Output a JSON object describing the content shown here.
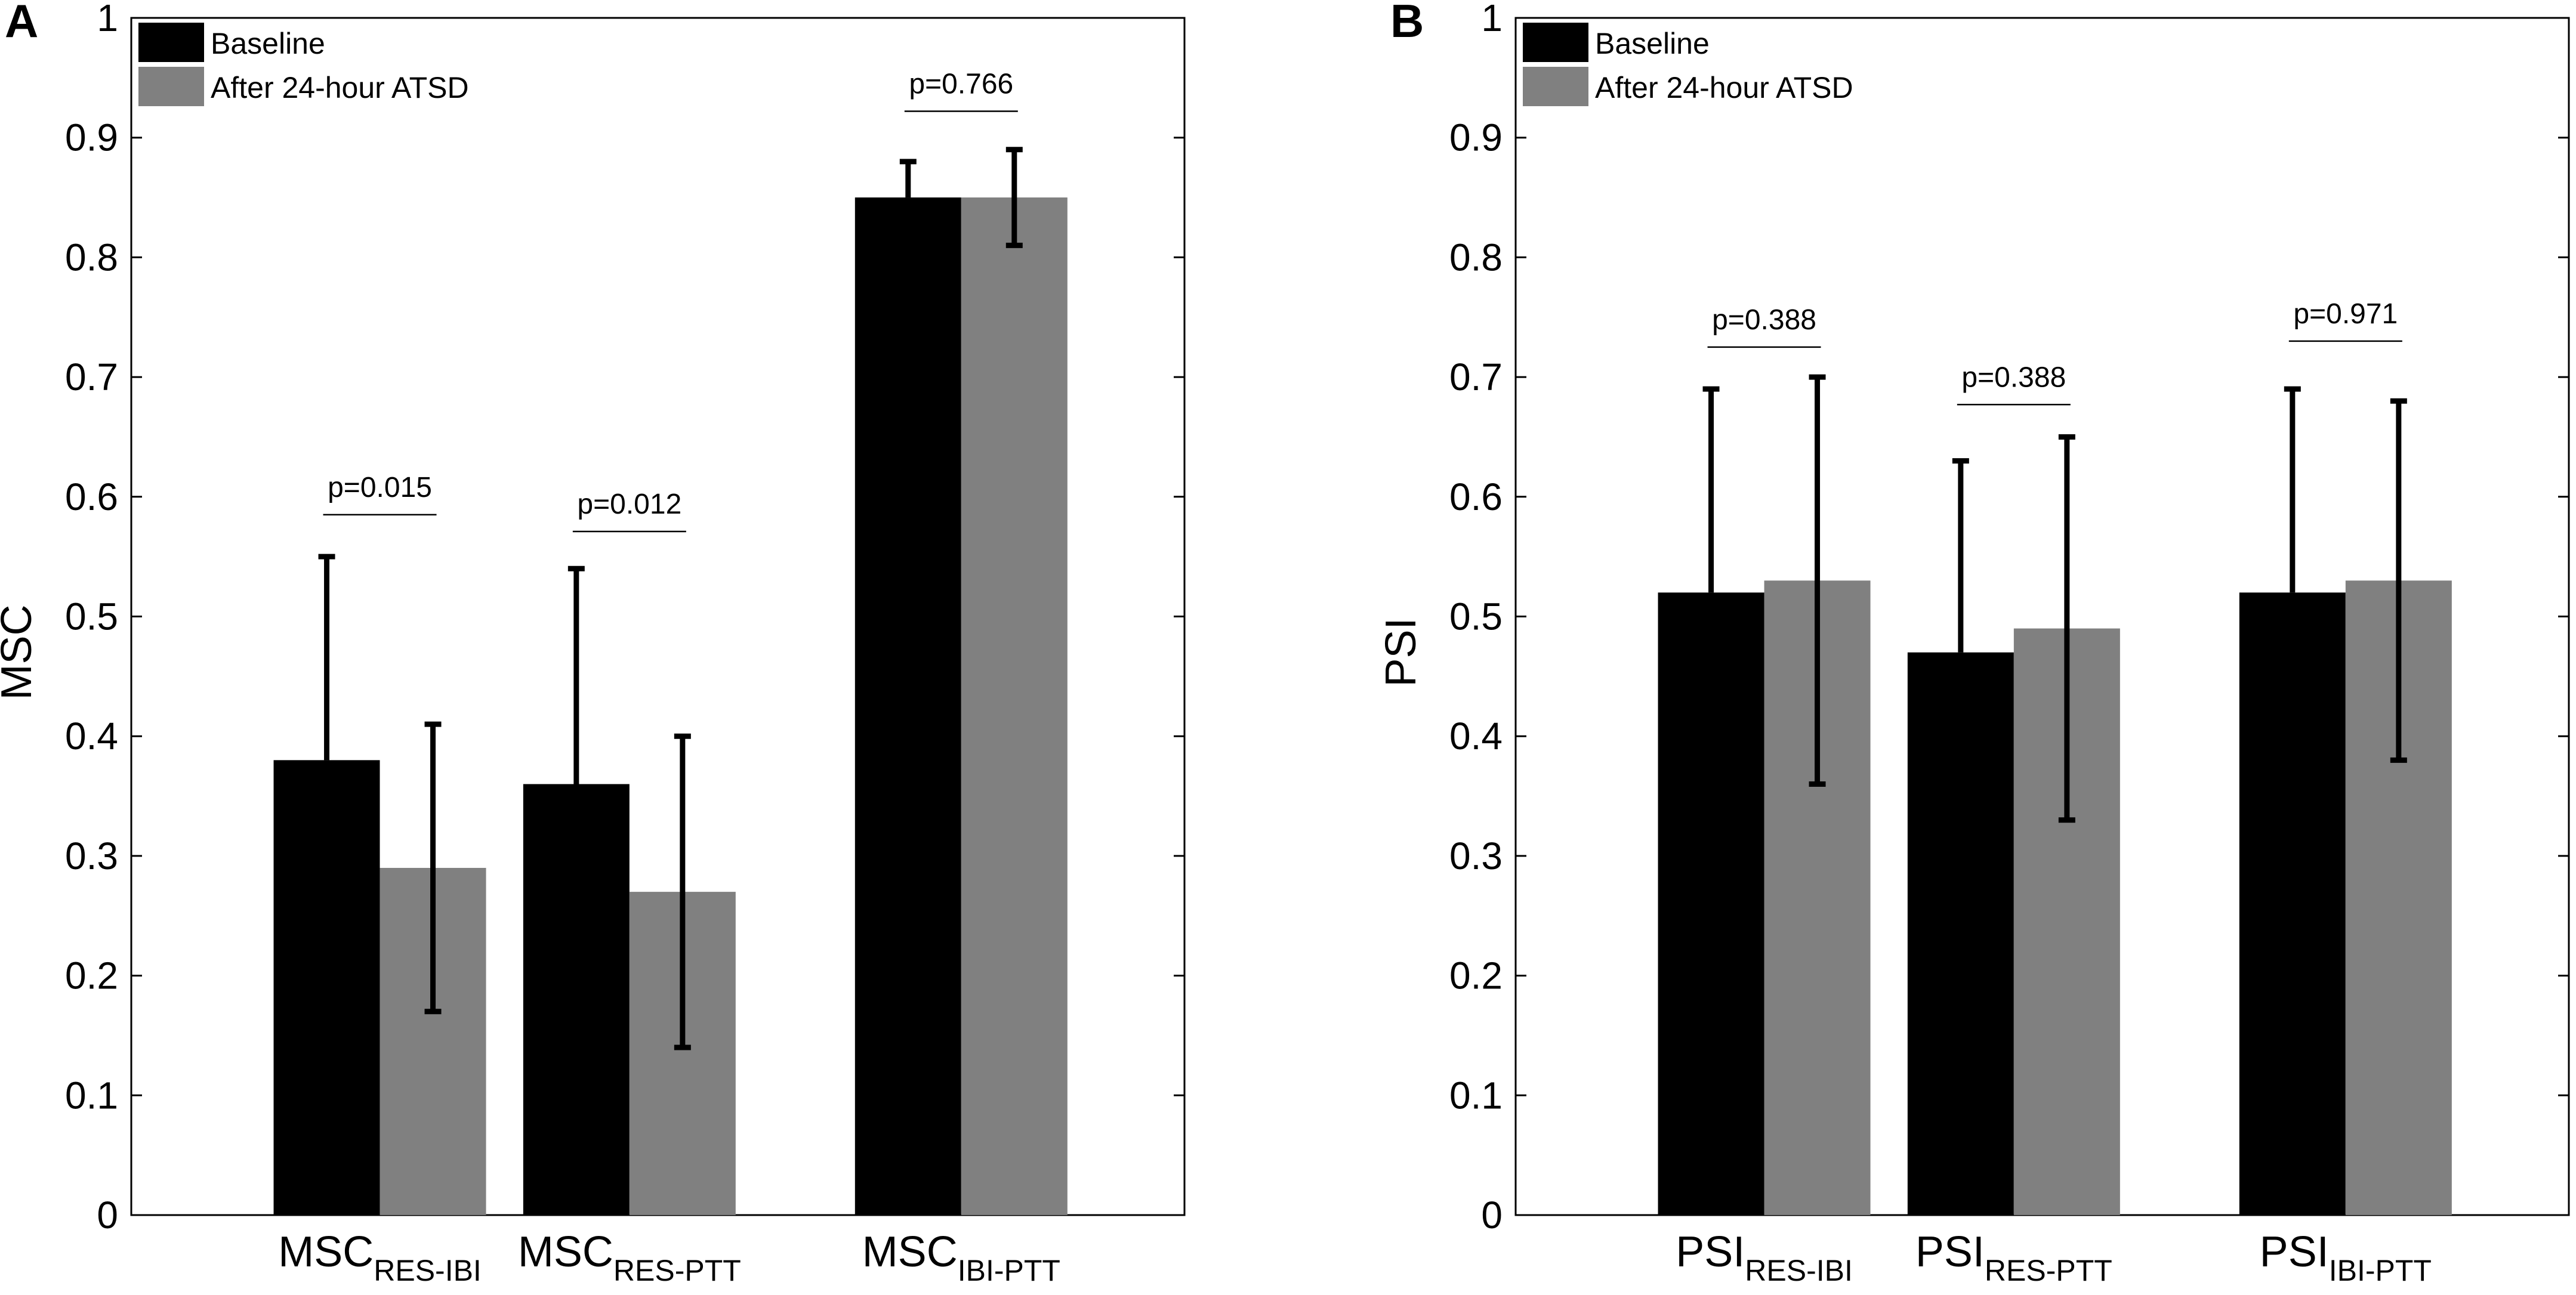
{
  "chart_data": [
    {
      "type": "bar",
      "panel_label": "A",
      "ylabel": "MSC",
      "ylim": [
        0,
        1
      ],
      "yticks": [
        0,
        0.1,
        0.2,
        0.3,
        0.4,
        0.5,
        0.6,
        0.7,
        0.8,
        0.9,
        1
      ],
      "ytick_labels": [
        "0",
        "0.1",
        "0.2",
        "0.3",
        "0.4",
        "0.5",
        "0.6",
        "0.7",
        "0.8",
        "0.9",
        "1"
      ],
      "categories": [
        {
          "base": "MSC",
          "sub": "RES-IBI"
        },
        {
          "base": "MSC",
          "sub": "RES-PTT"
        },
        {
          "base": "MSC",
          "sub": "IBI-PTT"
        }
      ],
      "series": [
        {
          "name": "Baseline",
          "color": "#000000",
          "values": [
            0.38,
            0.36,
            0.85
          ],
          "upper": [
            0.55,
            0.54,
            0.88
          ],
          "lower": [
            0.38,
            0.36,
            0.85
          ]
        },
        {
          "name": "After 24-hour ATSD",
          "color": "#808080",
          "values": [
            0.29,
            0.27,
            0.85
          ],
          "upper": [
            0.41,
            0.4,
            0.89
          ],
          "lower": [
            0.17,
            0.14,
            0.81
          ]
        }
      ],
      "annotations": [
        {
          "text": "p=0.015",
          "y": 0.585
        },
        {
          "text": "p=0.012",
          "y": 0.571
        },
        {
          "text": "p=0.766",
          "y": 0.922
        }
      ],
      "legend": "top-left"
    },
    {
      "type": "bar",
      "panel_label": "B",
      "ylabel": "PSI",
      "ylim": [
        0,
        1
      ],
      "yticks": [
        0,
        0.1,
        0.2,
        0.3,
        0.4,
        0.5,
        0.6,
        0.7,
        0.8,
        0.9,
        1
      ],
      "ytick_labels": [
        "0",
        "0.1",
        "0.2",
        "0.3",
        "0.4",
        "0.5",
        "0.6",
        "0.7",
        "0.8",
        "0.9",
        "1"
      ],
      "categories": [
        {
          "base": "PSI",
          "sub": "RES-IBI"
        },
        {
          "base": "PSI",
          "sub": "RES-PTT"
        },
        {
          "base": "PSI",
          "sub": "IBI-PTT"
        }
      ],
      "series": [
        {
          "name": "Baseline",
          "color": "#000000",
          "values": [
            0.52,
            0.47,
            0.52
          ],
          "upper": [
            0.69,
            0.63,
            0.69
          ],
          "lower": [
            0.52,
            0.47,
            0.52
          ]
        },
        {
          "name": "After 24-hour ATSD",
          "color": "#808080",
          "values": [
            0.53,
            0.49,
            0.53
          ],
          "upper": [
            0.7,
            0.65,
            0.68
          ],
          "lower": [
            0.36,
            0.33,
            0.38
          ]
        }
      ],
      "annotations": [
        {
          "text": "p=0.388",
          "y": 0.725
        },
        {
          "text": "p=0.388",
          "y": 0.677
        },
        {
          "text": "p=0.971",
          "y": 0.73
        }
      ],
      "legend": "top-left"
    }
  ]
}
